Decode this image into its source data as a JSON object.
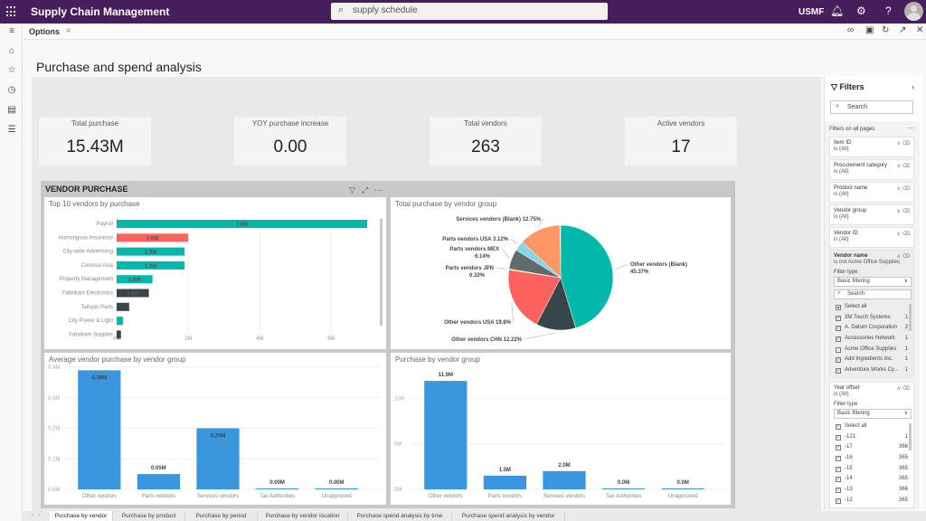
{
  "topbar": {
    "app_title": "Supply Chain Management",
    "search_value": "supply schedule",
    "company": "USMF",
    "icons": [
      "waffle-icon",
      "search-icon",
      "bell-icon",
      "gear-icon",
      "help-icon",
      "avatar"
    ]
  },
  "actionbar": {
    "options_label": "Options",
    "right_icons": [
      "link-icon",
      "office-icon",
      "refresh-icon",
      "open-new-icon",
      "close-icon"
    ]
  },
  "navrail": {
    "items": [
      "menu-icon",
      "home-icon",
      "favorites-icon",
      "recent-icon",
      "workspaces-icon",
      "modules-icon"
    ]
  },
  "page": {
    "title": "Purchase and spend analysis"
  },
  "kpis": [
    {
      "label": "Total purchase",
      "value": "15.43M"
    },
    {
      "label": "YOY purchase increase",
      "value": "0.00"
    },
    {
      "label": "Total vendors",
      "value": "263"
    },
    {
      "label": "Active vendors",
      "value": "17"
    }
  ],
  "vendor_panel": {
    "title": "VENDOR PURCHASE"
  },
  "colors": {
    "teal": "#01b8aa",
    "red": "#fd625e",
    "dark": "#374649",
    "orange": "#fe9666",
    "lightblue": "#8ad4eb",
    "gray": "#5f6b6d",
    "yellow": "#f2c80f",
    "blue": "#3a96dd",
    "brand": "#451e5b"
  },
  "chart_data": [
    {
      "type": "bar",
      "orientation": "horizontal",
      "title": "Top 10 vendors by purchase",
      "categories": [
        "Payroll",
        "Humongous Insurance",
        "City-wide Advertising",
        "Contoso Asia",
        "Property Management",
        "Fabrikam Electronics",
        "Tailspin Parts",
        "City Power & Light",
        "Fabrikam Supplier"
      ],
      "values": [
        7.0,
        2.0,
        1.9,
        1.9,
        1.0,
        0.9,
        0.35,
        0.18,
        0.12
      ],
      "data_labels": [
        "7.0M",
        "2.0M",
        "1.9M",
        "1.9M",
        "1.0M",
        "0.9M",
        "",
        "",
        ""
      ],
      "bar_colors": [
        "teal",
        "red",
        "teal",
        "teal",
        "teal",
        "dark",
        "dark",
        "teal",
        "dark"
      ],
      "x_ticks": [
        "0M",
        "2M",
        "4M",
        "6M"
      ],
      "xlim": [
        0,
        7.2
      ],
      "unit": "M"
    },
    {
      "type": "pie",
      "title": "Total purchase by vendor group",
      "slices": [
        {
          "label": "Other vendors (Blank)",
          "value": 45.37,
          "pct_label": "45.37%",
          "color": "teal"
        },
        {
          "label": "Other vendors CHN",
          "value": 12.22,
          "pct_label": "12.22%",
          "color": "dark"
        },
        {
          "label": "Other vendors USA",
          "value": 19.8,
          "pct_label": "19.8%",
          "color": "red"
        },
        {
          "label": "Parts vendors JPN",
          "value": 0.32,
          "pct_label": "0.32%",
          "color": "yellow"
        },
        {
          "label": "Parts vendors MEX",
          "value": 6.14,
          "pct_label": "6.14%",
          "color": "gray"
        },
        {
          "label": "Parts vendors USA",
          "value": 3.12,
          "pct_label": "3.12%",
          "color": "lightblue"
        },
        {
          "label": "Services vendors (Blank)",
          "value": 12.75,
          "pct_label": "12.75%",
          "color": "orange"
        }
      ]
    },
    {
      "type": "bar",
      "title": "Average vendor purchase by vendor group",
      "categories": [
        "Other vendors",
        "Parts vendors",
        "Services vendors",
        "Tax Authorities",
        "Unapproved"
      ],
      "values": [
        0.39,
        0.05,
        0.2,
        0.003,
        0.003
      ],
      "data_labels": [
        "0.39M",
        "0.05M",
        "0.20M",
        "0.00M",
        "0.00M"
      ],
      "y_ticks": [
        "0.0M",
        "0.1M",
        "0.2M",
        "0.3M",
        "0.4M"
      ],
      "ylim": [
        0,
        0.4
      ],
      "grid": true
    },
    {
      "type": "bar",
      "title": "Purchase by vendor group",
      "categories": [
        "Other vendors",
        "Parts vendors",
        "Services vendors",
        "Tax Authorities",
        "Unapproved"
      ],
      "values": [
        11.9,
        1.5,
        2.0,
        0.08,
        0.08
      ],
      "data_labels": [
        "11.9M",
        "1.5M",
        "2.0M",
        "0.0M",
        "0.0M"
      ],
      "y_ticks": [
        "0M",
        "5M",
        "10M"
      ],
      "ylim": [
        0,
        13.4
      ],
      "grid": true
    }
  ],
  "filters": {
    "title": "Filters",
    "search_placeholder": "Search",
    "section_label": "Filters on all pages",
    "cards": [
      {
        "name": "Item ID",
        "state": "is (All)"
      },
      {
        "name": "Procurement category",
        "state": "is (All)"
      },
      {
        "name": "Product name",
        "state": "is (All)"
      },
      {
        "name": "Vendor group",
        "state": "is (All)"
      },
      {
        "name": "Vendor ID",
        "state": "is (All)"
      }
    ],
    "vendor_name": {
      "name": "Vendor name",
      "state": "is not Acme Office Supplies",
      "filter_type_label": "Filter type",
      "filter_type": "Basic filtering",
      "search_placeholder": "Search",
      "items": [
        {
          "label": "Select all",
          "checked": "partial",
          "count": ""
        },
        {
          "label": "3M Touch Systems",
          "checked": true,
          "count": "1"
        },
        {
          "label": "A. Datum Corporation",
          "checked": true,
          "count": "2"
        },
        {
          "label": "Accessories Network",
          "checked": true,
          "count": "1"
        },
        {
          "label": "Acme Office Supplies",
          "checked": false,
          "count": "1"
        },
        {
          "label": "Add Ingredients Inc.",
          "checked": true,
          "count": "1"
        },
        {
          "label": "Adventure Works Cy...",
          "checked": true,
          "count": "1"
        }
      ]
    },
    "year_offset": {
      "name": "Year offset",
      "state": "is (All)",
      "filter_type_label": "Filter type",
      "filter_type": "Basic filtering",
      "items": [
        {
          "label": "Select all",
          "checked": true,
          "count": ""
        },
        {
          "label": "-121",
          "checked": true,
          "count": "1"
        },
        {
          "label": "-17",
          "checked": true,
          "count": "366"
        },
        {
          "label": "-16",
          "checked": true,
          "count": "365"
        },
        {
          "label": "-15",
          "checked": true,
          "count": "365"
        },
        {
          "label": "-14",
          "checked": true,
          "count": "365"
        },
        {
          "label": "-13",
          "checked": true,
          "count": "366"
        },
        {
          "label": "-12",
          "checked": true,
          "count": "365"
        }
      ]
    }
  },
  "tabs": [
    {
      "label": "Purchase by vendor",
      "active": true
    },
    {
      "label": "Purchase by product",
      "active": false
    },
    {
      "label": "Purchase by period",
      "active": false
    },
    {
      "label": "Purchase by vendor location",
      "active": false
    },
    {
      "label": "Purchase spend analysis by time",
      "active": false
    },
    {
      "label": "Purchase spend analysis by vendor",
      "active": false
    }
  ]
}
